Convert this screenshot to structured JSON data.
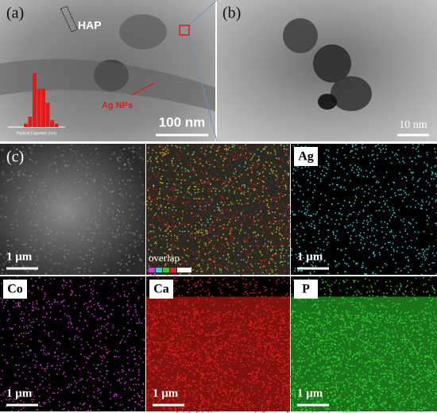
{
  "panels": {
    "a": {
      "label": "(a)",
      "annotations": [
        "HAP",
        "Ag NPs"
      ],
      "scale_bar": "100 nm",
      "inset": {
        "type": "bar",
        "x_label": "Particle Diameter (nm)",
        "values": [
          4,
          12,
          62,
          44,
          44,
          28,
          8,
          4
        ],
        "color": "#e31a1c"
      }
    },
    "b": {
      "label": "(b)",
      "scale_bar": "10 nm"
    },
    "c": {
      "label": "(c)",
      "maps": [
        {
          "scale_bar": "1 μm",
          "color": "#9a9a9a"
        },
        {
          "caption": "overlap",
          "color": "#b0a020"
        },
        {
          "element": "Ag",
          "scale_bar": "1 μm",
          "color": "#33d6d6"
        },
        {
          "element": "Co",
          "scale_bar": "1 μm",
          "color": "#d23cd2"
        },
        {
          "element": "Ca",
          "scale_bar": "1 μm",
          "color": "#e8201a"
        },
        {
          "element": "P",
          "scale_bar": "1 μm",
          "color": "#2fcf2f"
        }
      ]
    }
  }
}
